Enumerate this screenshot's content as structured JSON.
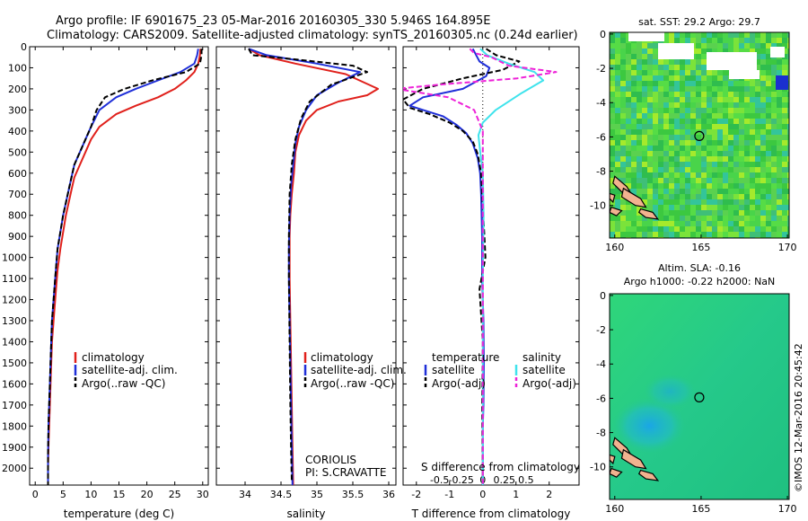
{
  "header": {
    "line1": "Argo profile: IF 6901675_23 05-Mar-2016 20160305_330 5.946S 164.895E",
    "line2": "Climatology: CARS2009. Satellite-adjusted climatology: synTS_20160305.nc (0.24d earlier)"
  },
  "watermark": "©IMOS 12-Mar-2016 20:45:42",
  "colors": {
    "climatology": "#e0201b",
    "satellite": "#1f2fd8",
    "argo": "#000000",
    "sal_satellite": "#3fe3ec",
    "sal_argo": "#ee22d8"
  },
  "chart_data": [
    {
      "type": "line",
      "id": "temperature",
      "xlabel": "temperature (deg C)",
      "ylabel": "",
      "xlim": [
        -1,
        31
      ],
      "ylim": [
        2080,
        0
      ],
      "xticks": [
        0,
        5,
        10,
        15,
        20,
        25,
        30
      ],
      "xtick_labels": [
        "0",
        "5",
        "10",
        "15",
        "20",
        "25",
        "30"
      ],
      "yticks": [
        0,
        100,
        200,
        300,
        400,
        500,
        600,
        700,
        800,
        900,
        1000,
        1100,
        1200,
        1300,
        1400,
        1500,
        1600,
        1700,
        1800,
        1900,
        2000
      ],
      "ytick_labels": [
        "0",
        "100",
        "200",
        "300",
        "400",
        "500",
        "600",
        "700",
        "800",
        "900",
        "1000",
        "1100",
        "1200",
        "1300",
        "1400",
        "1500",
        "1600",
        "1700",
        "1800",
        "1900",
        "2000"
      ],
      "legend": [
        "climatology",
        "satellite-adj. clim.",
        "Argo(..raw -QC)"
      ],
      "series": [
        {
          "name": "climatology",
          "color": "#e0201b",
          "dash": false,
          "x": [
            29.6,
            29.5,
            29.2,
            28.5,
            27,
            25,
            22,
            18,
            14.5,
            11.5,
            10,
            9,
            8,
            7,
            6.5,
            6,
            5.5,
            5,
            4.5,
            4,
            3.7,
            3.4,
            3,
            2.8,
            2.6,
            2.4,
            2.3,
            2.3
          ],
          "y": [
            10,
            40,
            80,
            120,
            160,
            200,
            240,
            280,
            320,
            380,
            440,
            500,
            560,
            620,
            680,
            740,
            800,
            880,
            960,
            1060,
            1160,
            1260,
            1400,
            1560,
            1720,
            1880,
            2000,
            2080
          ]
        },
        {
          "name": "satellite-adj. clim.",
          "color": "#1f2fd8",
          "dash": false,
          "x": [
            29.2,
            29,
            28.5,
            26,
            22,
            18,
            14.5,
            11.5,
            10,
            9,
            8,
            7,
            6.5,
            6,
            5.5,
            5,
            4.5,
            4,
            3.7,
            3.4,
            3,
            2.8,
            2.6,
            2.4,
            2.3,
            2.3
          ],
          "y": [
            10,
            40,
            80,
            120,
            160,
            200,
            240,
            300,
            380,
            440,
            500,
            560,
            620,
            680,
            740,
            800,
            880,
            960,
            1060,
            1160,
            1300,
            1460,
            1620,
            1780,
            1940,
            2080
          ]
        },
        {
          "name": "Argo(..raw -QC)",
          "color": "#000000",
          "dash": true,
          "x": [
            29.8,
            29.8,
            29.5,
            27,
            21,
            16,
            12.5,
            11,
            10,
            9,
            8,
            7,
            6.5,
            6,
            5.5,
            5,
            4.5,
            4,
            3.7,
            3.4,
            3,
            2.8,
            2.6,
            2.4,
            2.3,
            2.3
          ],
          "y": [
            10,
            40,
            80,
            120,
            160,
            200,
            240,
            300,
            380,
            440,
            500,
            560,
            620,
            680,
            740,
            800,
            880,
            960,
            1060,
            1160,
            1300,
            1460,
            1620,
            1780,
            1940,
            2080
          ]
        }
      ]
    },
    {
      "type": "line",
      "id": "salinity",
      "xlabel": "salinity",
      "xlim": [
        33.6,
        36.1
      ],
      "ylim": [
        2080,
        0
      ],
      "xticks": [
        34,
        34.5,
        35,
        35.5,
        36
      ],
      "xtick_labels": [
        "34",
        "34.5",
        "35",
        "35.5",
        "36"
      ],
      "legend": [
        "climatology",
        "satellite-adj. clim.",
        "Argo(..raw -QC)"
      ],
      "annotation": [
        "CORIOLIS",
        "PI: S.CRAVATTE"
      ],
      "series": [
        {
          "name": "climatology",
          "color": "#e0201b",
          "dash": false,
          "x": [
            34.05,
            34.2,
            34.7,
            35.4,
            35.85,
            35.7,
            35.3,
            35,
            34.85,
            34.75,
            34.7,
            34.68,
            34.65,
            34.63,
            34.62,
            34.62,
            34.63,
            34.64,
            34.65,
            34.66,
            34.67
          ],
          "y": [
            10,
            40,
            80,
            130,
            200,
            230,
            260,
            300,
            350,
            420,
            500,
            600,
            700,
            800,
            900,
            1100,
            1300,
            1500,
            1700,
            1900,
            2080
          ]
        },
        {
          "name": "satellite-adj. clim.",
          "color": "#1f2fd8",
          "dash": false,
          "x": [
            34.05,
            34.3,
            35,
            35.6,
            35.3,
            35,
            34.85,
            34.75,
            34.7,
            34.67,
            34.64,
            34.62,
            34.61,
            34.61,
            34.62,
            34.63,
            34.64,
            34.65,
            34.66
          ],
          "y": [
            10,
            40,
            80,
            120,
            170,
            230,
            300,
            380,
            460,
            560,
            660,
            800,
            950,
            1100,
            1300,
            1500,
            1700,
            1900,
            2080
          ]
        },
        {
          "name": "Argo(..raw -QC)",
          "color": "#000000",
          "dash": true,
          "x": [
            34.05,
            34.1,
            34.7,
            35.5,
            35.7,
            35.2,
            34.9,
            34.78,
            34.7,
            34.65,
            34.62,
            34.61,
            34.61,
            34.62,
            34.63,
            34.64,
            34.65
          ],
          "y": [
            10,
            40,
            60,
            90,
            120,
            180,
            260,
            340,
            440,
            560,
            700,
            900,
            1100,
            1400,
            1700,
            1900,
            2060
          ]
        }
      ]
    },
    {
      "type": "line",
      "id": "difference",
      "xlabel": "T difference from climatology",
      "top_label": "S difference from climatology",
      "xlim": [
        -2.4,
        2.9
      ],
      "ylim": [
        2080,
        0
      ],
      "xticks": [
        -2,
        -1,
        0,
        1,
        2
      ],
      "xtick_labels": [
        "-2",
        "-1",
        "0",
        "1",
        "2"
      ],
      "sticks": [
        -0.5,
        -0.25,
        0,
        0.25,
        0.5
      ],
      "stick_labels": [
        "-0.5",
        "-0.25",
        "0",
        "0.25",
        "0.5"
      ],
      "legend_headers": [
        "temperature",
        "salinity"
      ],
      "legend": [
        "satellite",
        "Argo(-adj)",
        "satellite",
        "Argo(-adj)"
      ],
      "series": [
        {
          "name": "T satellite",
          "color": "#1f2fd8",
          "dash": false,
          "x": [
            -0.3,
            -0.2,
            -0.1,
            0.2,
            0.1,
            -0.6,
            -1.8,
            -2.2,
            -1.8,
            -1.2,
            -0.8,
            -0.5,
            -0.3,
            -0.15,
            -0.08,
            -0.05,
            -0.02,
            -0.02,
            0.02,
            0.03,
            0.02,
            0.0,
            0.0,
            0.0
          ],
          "y": [
            10,
            40,
            70,
            100,
            140,
            200,
            240,
            280,
            300,
            330,
            370,
            410,
            460,
            530,
            600,
            700,
            900,
            1100,
            1300,
            1500,
            1700,
            1800,
            1950,
            2080
          ]
        },
        {
          "name": "T Argo(-adj)",
          "color": "#000000",
          "dash": true,
          "x": [
            0.1,
            0.4,
            1.1,
            0.6,
            -0.6,
            -1.8,
            -2.4,
            -2.2,
            -1.6,
            -1.0,
            -0.6,
            -0.3,
            -0.15,
            -0.05,
            -0.02,
            0.05,
            0.08,
            -0.1,
            0.0,
            -0.02,
            0.0
          ],
          "y": [
            10,
            40,
            70,
            110,
            150,
            200,
            250,
            290,
            320,
            360,
            400,
            450,
            510,
            600,
            700,
            900,
            1000,
            1150,
            1400,
            1700,
            2080
          ]
        },
        {
          "name": "S satellite",
          "color": "#3fe3ec",
          "dash": false,
          "s": [
            -0.03,
            0.05,
            0.3,
            0.6,
            0.7,
            0.45,
            0.15,
            0.0,
            -0.05,
            -0.03,
            0.0,
            0.01,
            0.0,
            0.0,
            0.0,
            0.0
          ],
          "y": [
            10,
            40,
            80,
            120,
            160,
            220,
            300,
            360,
            420,
            500,
            600,
            800,
            1100,
            1400,
            1700,
            2080
          ]
        },
        {
          "name": "S Argo(-adj)",
          "color": "#ee22d8",
          "dash": true,
          "s": [
            -0.15,
            -0.1,
            0.1,
            0.3,
            0.85,
            0.4,
            -0.5,
            -1.0,
            -0.4,
            -0.1,
            0.0,
            0.0,
            0.0,
            0.0
          ],
          "y": [
            10,
            30,
            50,
            90,
            120,
            150,
            180,
            200,
            240,
            300,
            400,
            600,
            1000,
            2080
          ]
        }
      ]
    },
    {
      "type": "heatmap",
      "id": "sst_map",
      "title": "sat. SST: 29.2  Argo: 29.7",
      "xlim": [
        159.7,
        170.1
      ],
      "ylim": [
        -11.9,
        0.1
      ],
      "xticks": [
        160,
        165,
        170
      ],
      "xtick_labels": [
        "160",
        "165",
        "170"
      ],
      "yticks": [
        0,
        -2,
        -4,
        -6,
        -8,
        -10
      ],
      "ytick_labels": [
        "0",
        "-2",
        "-4",
        "-6",
        "-8",
        "-10"
      ],
      "argo_position": [
        164.895,
        -5.946
      ]
    },
    {
      "type": "heatmap",
      "id": "sla_map",
      "title": "Altim. SLA: -0.16",
      "subtitle": "Argo h1000: -0.22 h2000: NaN",
      "xlim": [
        159.7,
        170.1
      ],
      "ylim": [
        -11.9,
        0.1
      ],
      "xticks": [
        160,
        165,
        170
      ],
      "xtick_labels": [
        "160",
        "165",
        "170"
      ],
      "yticks": [
        0,
        -2,
        -4,
        -6,
        -8,
        -10
      ],
      "ytick_labels": [
        "0",
        "-2",
        "-4",
        "-6",
        "-8",
        "-10"
      ],
      "argo_position": [
        164.895,
        -5.946
      ]
    }
  ]
}
